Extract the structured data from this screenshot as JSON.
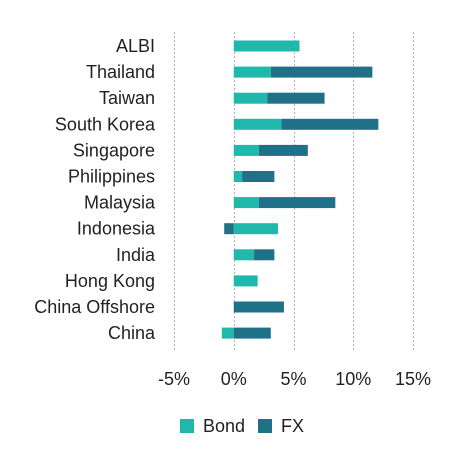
{
  "chart_data": {
    "type": "bar",
    "orientation": "horizontal",
    "stacked": true,
    "categories": [
      "ALBI",
      "Thailand",
      "Taiwan",
      "South Korea",
      "Singapore",
      "Philippines",
      "Malaysia",
      "Indonesia",
      "India",
      "Hong Kong",
      "China Offshore",
      "China"
    ],
    "series": [
      {
        "name": "Bond",
        "color": "#1fb8aa",
        "values": [
          5.5,
          3.1,
          2.8,
          4.0,
          2.1,
          0.7,
          2.1,
          3.7,
          1.7,
          2.0,
          0.0,
          -1.0
        ]
      },
      {
        "name": "FX",
        "color": "#1e7187",
        "values": [
          0.0,
          8.5,
          4.8,
          8.1,
          4.1,
          2.7,
          6.4,
          -0.8,
          1.7,
          0.0,
          4.2,
          3.1
        ]
      }
    ],
    "x_ticks": [
      "-5%",
      "0%",
      "5%",
      "10%",
      "15%"
    ],
    "xlim": [
      -5,
      15
    ],
    "legend_position": "bottom",
    "grid": true
  }
}
